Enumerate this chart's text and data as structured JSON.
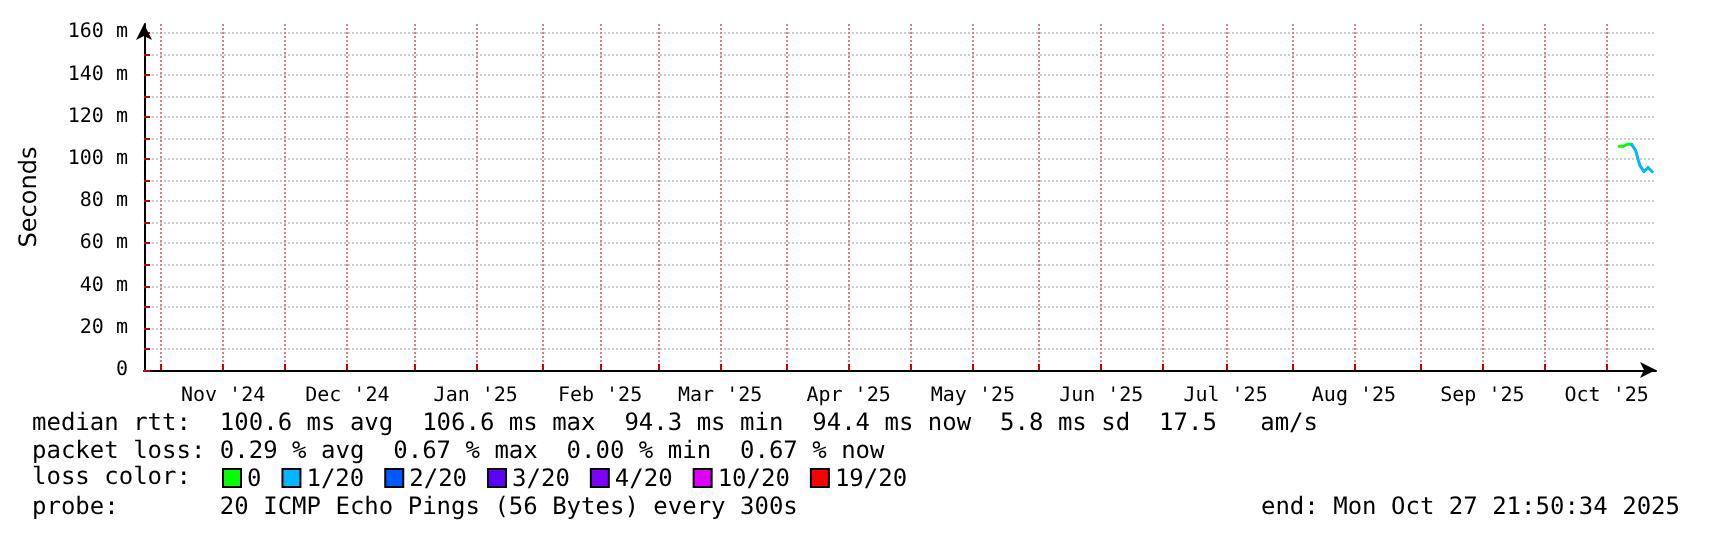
{
  "chart_data": {
    "type": "line",
    "ylabel": "Seconds",
    "legend_title": "loss color:",
    "xlim": [
      "2024-10-27T21:50",
      "2025-10-27T21:50"
    ],
    "xticks": [
      {
        "value": "2024-11-01",
        "label": null
      },
      {
        "value": "2024-11-16",
        "label": "Nov '24"
      },
      {
        "value": "2024-12-01",
        "label": null
      },
      {
        "value": "2024-12-16",
        "label": "Dec '24"
      },
      {
        "value": "2025-01-01",
        "label": null
      },
      {
        "value": "2025-01-16",
        "label": "Jan '25"
      },
      {
        "value": "2025-02-01",
        "label": null
      },
      {
        "value": "2025-02-15",
        "label": "Feb '25"
      },
      {
        "value": "2025-03-01",
        "label": null
      },
      {
        "value": "2025-03-16",
        "label": "Mar '25"
      },
      {
        "value": "2025-04-01",
        "label": null
      },
      {
        "value": "2025-04-16",
        "label": "Apr '25"
      },
      {
        "value": "2025-05-01",
        "label": null
      },
      {
        "value": "2025-05-16",
        "label": "May '25"
      },
      {
        "value": "2025-06-01",
        "label": null
      },
      {
        "value": "2025-06-16",
        "label": "Jun '25"
      },
      {
        "value": "2025-07-01",
        "label": null
      },
      {
        "value": "2025-07-16",
        "label": "Jul '25"
      },
      {
        "value": "2025-08-01",
        "label": null
      },
      {
        "value": "2025-08-16",
        "label": "Aug '25"
      },
      {
        "value": "2025-09-01",
        "label": null
      },
      {
        "value": "2025-09-16",
        "label": "Sep '25"
      },
      {
        "value": "2025-10-01",
        "label": null
      },
      {
        "value": "2025-10-16",
        "label": "Oct '25"
      }
    ],
    "ylim": [
      0,
      164
    ],
    "yticks": [
      0,
      {
        "value": 10,
        "label": null
      },
      {
        "value": 20,
        "label": "20 m"
      },
      {
        "value": 30,
        "label": null
      },
      {
        "value": 40,
        "label": "40 m"
      },
      {
        "value": 50,
        "label": null
      },
      {
        "value": 60,
        "label": "60 m"
      },
      {
        "value": 70,
        "label": null
      },
      {
        "value": 80,
        "label": "80 m"
      },
      {
        "value": 90,
        "label": null
      },
      {
        "value": 100,
        "label": "100 m"
      },
      {
        "value": 110,
        "label": null
      },
      {
        "value": 120,
        "label": "120 m"
      },
      {
        "value": 130,
        "label": null
      },
      {
        "value": 140,
        "label": "140 m"
      },
      {
        "value": 150,
        "label": null
      },
      {
        "value": 160,
        "label": "160 m"
      }
    ],
    "series": [
      {
        "name": "0",
        "color": "#00ff00",
        "x": [
          "2025-10-19T00:00",
          "2025-10-20T00:00",
          "2025-10-21T00:00",
          "2025-10-22T00:00"
        ],
        "values": [
          106,
          106,
          107,
          107
        ]
      },
      {
        "name": "1/20",
        "color": "#00b8ff",
        "x": [
          "2025-10-22T00:00",
          "2025-10-23T00:00",
          "2025-10-24T00:00",
          "2025-10-25T00:00",
          "2025-10-26T00:00",
          "2025-10-27T00:00"
        ],
        "values": [
          107,
          104,
          97,
          94,
          96,
          94
        ]
      },
      {
        "name": "2/20",
        "color": "#0059ff"
      },
      {
        "name": "3/20",
        "color": "#5e00ff"
      },
      {
        "name": "4/20",
        "color": "#7e00ff"
      },
      {
        "name": "10/20",
        "color": "#dd00ff"
      },
      {
        "name": "19/20",
        "color": "#ff0000"
      }
    ],
    "grid": true,
    "legend": "bottom",
    "marker": "none",
    "line_style": "solid",
    "annotations": [
      "median rtt:  100.6 ms avg  106.6 ms max  94.3 ms min  94.4 ms now  5.8 ms sd  17.5   am/s",
      "packet loss: 0.29 % avg  0.67 % max  0.00 % min  0.67 % now",
      "probe:       20 ICMP Echo Pings (56 Bytes) every 300s",
      "end: Mon Oct 27 21:50:34 2025"
    ]
  }
}
